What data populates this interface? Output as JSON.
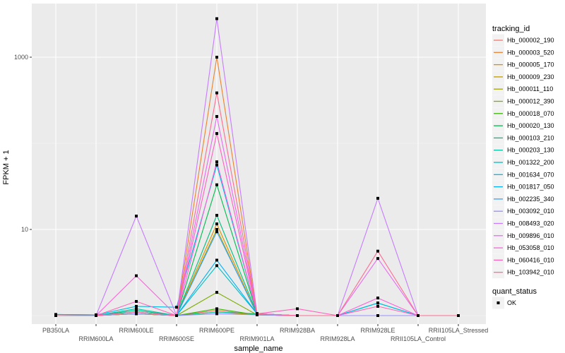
{
  "chart_data": {
    "type": "line",
    "title": "",
    "xlabel": "sample_name",
    "ylabel": "FPKM + 1",
    "yscale": "log10",
    "ylim": [
      1,
      3000
    ],
    "yticks": [
      10,
      1000
    ],
    "ytick_labels": [
      "10",
      "1000"
    ],
    "grid": true,
    "categories": [
      "PB350LA",
      "RRIM600LA",
      "RRIM600LE",
      "RRIM600SE",
      "RRIM600PE",
      "RRIM901LA",
      "RRIM928BA",
      "RRIM928LA",
      "RRIM928LE",
      "RRII105LA_Control",
      "RRII105LA_Stressed"
    ],
    "legend": {
      "title": "tracking_id",
      "position": "right"
    },
    "shape_legend": {
      "title": "quant_status",
      "items": [
        "OK"
      ]
    },
    "series": [
      {
        "name": "Hb_000002_190",
        "color": "#F8766D",
        "values": [
          1,
          1,
          1.1,
          1,
          1.15,
          1.02,
          1,
          1,
          1,
          1,
          1
        ]
      },
      {
        "name": "Hb_000003_520",
        "color": "#EA8331",
        "values": [
          1,
          1,
          1.05,
          1,
          1000,
          1.02,
          1,
          1,
          1,
          1,
          1
        ]
      },
      {
        "name": "Hb_000005_170",
        "color": "#D89000",
        "values": [
          1,
          1,
          1.05,
          1,
          11.6,
          1.02,
          1,
          1,
          1,
          1,
          1
        ]
      },
      {
        "name": "Hb_000009_230",
        "color": "#C09B00",
        "values": [
          1,
          1,
          1.05,
          1,
          1.1,
          1.02,
          1,
          1,
          1,
          1,
          1
        ]
      },
      {
        "name": "Hb_000011_110",
        "color": "#A3A500",
        "values": [
          1,
          1,
          1.05,
          1,
          10,
          1.02,
          1,
          1,
          1,
          1,
          1
        ]
      },
      {
        "name": "Hb_000012_390",
        "color": "#7CAE00",
        "values": [
          1,
          1,
          1.05,
          1,
          1.86,
          1.02,
          1,
          1,
          1,
          1,
          1
        ]
      },
      {
        "name": "Hb_000018_070",
        "color": "#39B600",
        "values": [
          1,
          1,
          1.05,
          1,
          1.2,
          1.02,
          1,
          1,
          1,
          1,
          1
        ]
      },
      {
        "name": "Hb_000020_130",
        "color": "#00BB4E",
        "values": [
          1,
          1,
          1.1,
          1,
          33,
          1.05,
          1,
          1,
          1,
          1,
          1
        ]
      },
      {
        "name": "Hb_000103_210",
        "color": "#00BF7D",
        "values": [
          1,
          1,
          1.15,
          1,
          14.6,
          1.05,
          1,
          1,
          1,
          1,
          1
        ]
      },
      {
        "name": "Hb_000203_130",
        "color": "#00C1A3",
        "values": [
          1,
          1,
          1.2,
          1,
          1.1,
          1.05,
          1,
          1,
          1,
          1,
          1
        ]
      },
      {
        "name": "Hb_001322_200",
        "color": "#00BFC4",
        "values": [
          1.03,
          1.02,
          1.1,
          1,
          3.8,
          1.05,
          1,
          1,
          1.4,
          1,
          1
        ]
      },
      {
        "name": "Hb_001634_070",
        "color": "#00BAE0",
        "values": [
          1.03,
          1.02,
          1.28,
          1.25,
          56,
          1.05,
          1,
          1,
          1.4,
          1,
          1
        ]
      },
      {
        "name": "Hb_001817_050",
        "color": "#00B0F6",
        "values": [
          1,
          1,
          1.1,
          1,
          4.4,
          1.05,
          1,
          1,
          1,
          1,
          1
        ]
      },
      {
        "name": "Hb_002235_340",
        "color": "#35A2FF",
        "values": [
          1,
          1,
          1.1,
          1,
          9.4,
          1.05,
          1,
          1,
          1,
          1,
          1
        ]
      },
      {
        "name": "Hb_003092_010",
        "color": "#9590FF",
        "values": [
          1,
          1,
          1.05,
          1,
          1.05,
          1.02,
          1,
          1,
          1,
          1,
          1
        ]
      },
      {
        "name": "Hb_008493_020",
        "color": "#C77CFF",
        "values": [
          1,
          1,
          14.3,
          1,
          2800,
          1.05,
          1,
          1,
          23,
          1,
          1
        ]
      },
      {
        "name": "Hb_009896_010",
        "color": "#E76BF3",
        "values": [
          1,
          1,
          1.1,
          1,
          205,
          1.05,
          1,
          1,
          4.6,
          1,
          1
        ]
      },
      {
        "name": "Hb_053058_010",
        "color": "#FA62DB",
        "values": [
          1,
          1,
          2.9,
          1,
          61,
          1.05,
          1,
          1,
          1.6,
          1,
          1
        ]
      },
      {
        "name": "Hb_060416_010",
        "color": "#FF62BC",
        "values": [
          1,
          1,
          1.46,
          1,
          130,
          1.05,
          1.2,
          1,
          1.28,
          1,
          1
        ]
      },
      {
        "name": "Hb_103942_010",
        "color": "#FF6C91",
        "values": [
          1,
          1,
          1.1,
          1,
          385,
          1.05,
          1,
          1,
          5.6,
          1,
          1
        ]
      }
    ]
  }
}
